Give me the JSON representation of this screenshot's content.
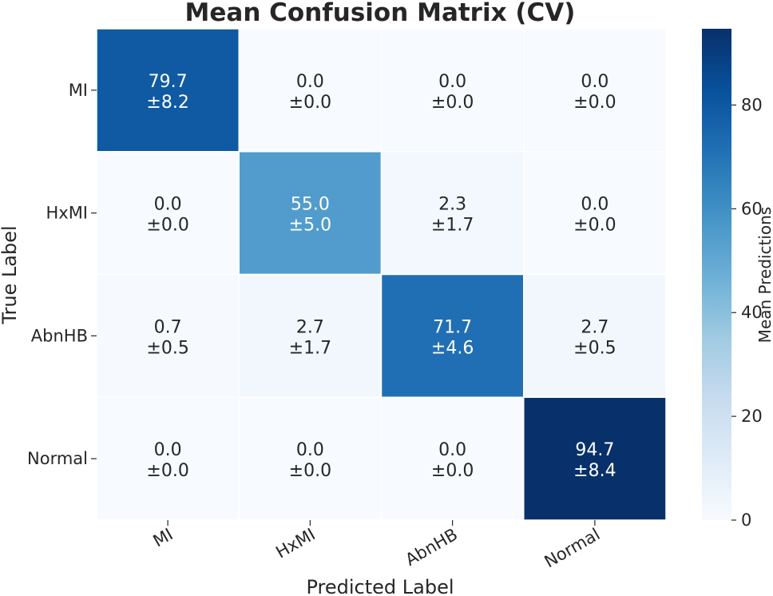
{
  "chart_data": {
    "type": "heatmap",
    "title": "Mean Confusion Matrix (CV)",
    "xlabel": "Predicted Label",
    "ylabel": "True Label",
    "x_categories": [
      "MI",
      "HxMI",
      "AbnHB",
      "Normal"
    ],
    "y_categories": [
      "MI",
      "HxMI",
      "AbnHB",
      "Normal"
    ],
    "values": [
      [
        79.7,
        0.0,
        0.0,
        0.0
      ],
      [
        0.0,
        55.0,
        2.3,
        0.0
      ],
      [
        0.7,
        2.7,
        71.7,
        2.7
      ],
      [
        0.0,
        0.0,
        0.0,
        94.7
      ]
    ],
    "std": [
      [
        8.2,
        0.0,
        0.0,
        0.0
      ],
      [
        0.0,
        5.0,
        1.7,
        0.0
      ],
      [
        0.5,
        1.7,
        4.6,
        0.5
      ],
      [
        0.0,
        0.0,
        0.0,
        8.4
      ]
    ],
    "colorbar": {
      "label": "Mean Predictions",
      "range": [
        0,
        94.7
      ],
      "ticks": [
        0,
        20,
        40,
        60,
        80
      ],
      "colormap": "Blues"
    }
  }
}
